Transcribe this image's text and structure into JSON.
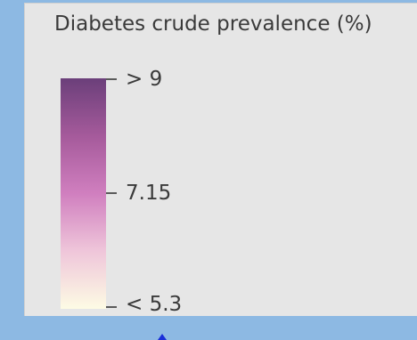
{
  "legend": {
    "title": "Diabetes crude prevalence (%)",
    "ticks": [
      {
        "label": "> 9",
        "value": 9
      },
      {
        "label": "7.15",
        "value": 7.15
      },
      {
        "label": "< 5.3",
        "value": 5.3
      }
    ],
    "gradient": {
      "top": "#6b3f7a",
      "upper_mid": "#a55a9b",
      "mid": "#d07fbf",
      "lower_mid": "#efc6da",
      "bottom": "#fdfbe4"
    }
  },
  "colors": {
    "water": "#8db9e3",
    "panel": "#e6e6e6",
    "text": "#3a3a3a",
    "tick": "#5a5a5a",
    "marker": "#1a2fd8"
  }
}
